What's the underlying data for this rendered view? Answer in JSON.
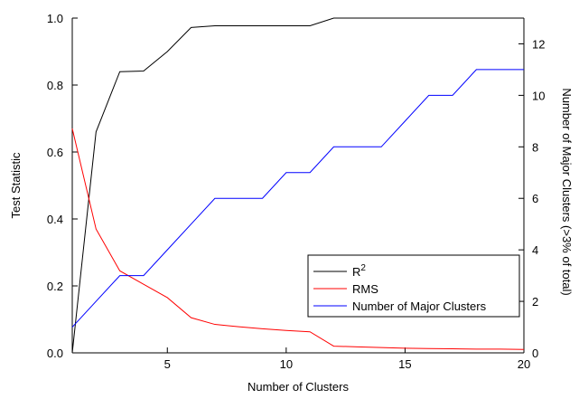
{
  "chart_data": {
    "type": "line",
    "title": "",
    "xlabel": "Number of Clusters",
    "ylabel": "Test Statistic",
    "y2label": "Number of Major Clusters (>3% of total)",
    "xlim": [
      1,
      20
    ],
    "ylim": [
      0,
      1.0
    ],
    "y2lim": [
      0,
      13
    ],
    "x_ticks": [
      5,
      10,
      15,
      20
    ],
    "y_ticks": [
      0.0,
      0.2,
      0.4,
      0.6,
      0.8,
      1.0
    ],
    "y2_ticks": [
      0,
      2,
      4,
      6,
      8,
      10,
      12
    ],
    "y_tick_labels": [
      "0.0",
      "0.2",
      "0.4",
      "0.6",
      "0.8",
      "1.0"
    ],
    "grid": false,
    "legend_position": "center-right",
    "x": [
      1,
      2,
      3,
      4,
      5,
      6,
      7,
      8,
      9,
      10,
      11,
      12,
      13,
      14,
      15,
      16,
      17,
      18,
      19,
      20
    ],
    "series": [
      {
        "name": "R",
        "name_sup": "2",
        "color": "#000000",
        "axis": "left",
        "values": [
          0.0,
          0.66,
          0.84,
          0.842,
          0.9,
          0.972,
          0.977,
          0.977,
          0.977,
          0.977,
          0.977,
          1.0,
          1.0,
          1.0,
          1.0,
          1.0,
          1.0,
          1.0,
          1.0,
          1.0
        ]
      },
      {
        "name": "RMS",
        "color": "#ff0000",
        "axis": "left",
        "values": [
          0.67,
          0.37,
          0.245,
          0.205,
          0.165,
          0.105,
          0.085,
          0.078,
          0.072,
          0.067,
          0.063,
          0.02,
          0.018,
          0.016,
          0.014,
          0.013,
          0.012,
          0.011,
          0.011,
          0.01
        ]
      },
      {
        "name": "Number of Major Clusters",
        "color": "#0000ff",
        "axis": "right",
        "values": [
          1,
          2,
          3,
          3,
          4,
          5,
          6,
          6,
          6,
          7,
          7,
          8,
          8,
          8,
          9,
          10,
          10,
          11,
          11,
          11
        ]
      }
    ]
  }
}
